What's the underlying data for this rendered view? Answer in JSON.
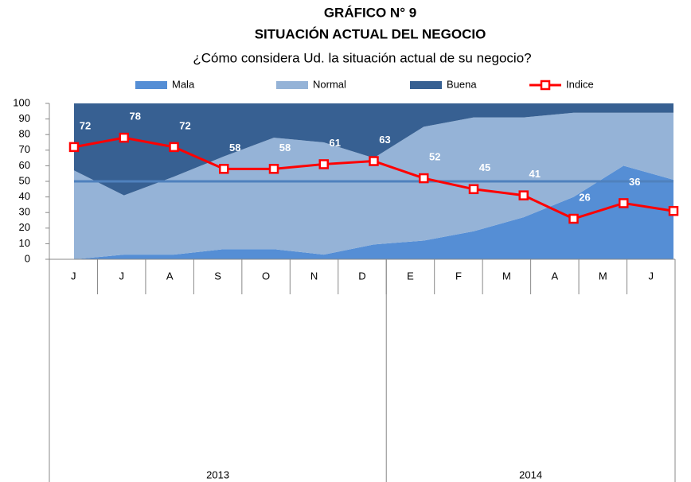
{
  "chart_data": {
    "type": "stacked_area_line",
    "title": "GRÁFICO N° 9",
    "subtitle": "SITUACIÓN ACTUAL DEL NEGOCIO",
    "question": "¿Cómo considera Ud. la situación actual de su negocio?",
    "categories": [
      "J",
      "J",
      "A",
      "S",
      "O",
      "N",
      "D",
      "E",
      "F",
      "M",
      "A",
      "M",
      "J"
    ],
    "groups": [
      {
        "label": "2013",
        "span": 7
      },
      {
        "label": "2014",
        "span": 6
      }
    ],
    "series": [
      {
        "name": "Mala",
        "color": "#558ed5",
        "values": [
          0,
          3,
          3,
          6.5,
          6.5,
          3,
          9.5,
          12,
          18,
          27,
          40,
          60,
          51
        ]
      },
      {
        "name": "Normal",
        "color": "#95b3d7",
        "values": [
          57,
          38,
          50,
          59.5,
          71.5,
          72,
          55.5,
          73,
          73,
          64,
          54,
          34,
          43
        ]
      },
      {
        "name": "Buena",
        "color": "#376092",
        "values": [
          43,
          59,
          47,
          34,
          22,
          25,
          35,
          15,
          9,
          9,
          6,
          6,
          6
        ]
      },
      {
        "name": "Indice",
        "color": "#ff0000",
        "kind": "line",
        "values": [
          72,
          78,
          72,
          58,
          58,
          61,
          63,
          52,
          45,
          41,
          26,
          36,
          31
        ]
      }
    ],
    "reference_line": {
      "value": 50,
      "color": "#4f81bd"
    },
    "ylim": [
      0,
      100
    ],
    "yticks": [
      0,
      10,
      20,
      30,
      40,
      50,
      60,
      70,
      80,
      90,
      100
    ]
  }
}
